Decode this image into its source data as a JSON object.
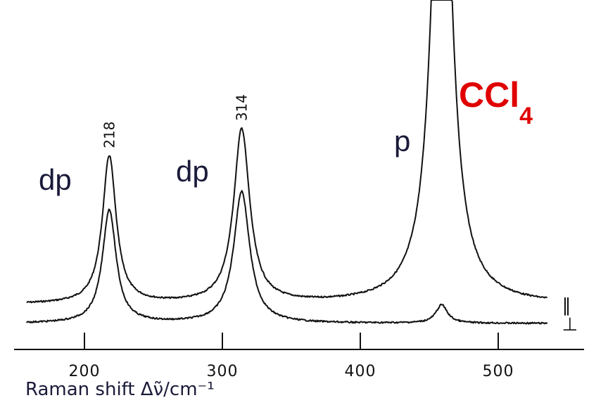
{
  "chart_data": {
    "type": "line",
    "xlabel": "Raman shift Δν̃/cm⁻¹",
    "xlim": [
      150,
      550
    ],
    "xticks": [
      200,
      300,
      400,
      500
    ],
    "molecule": {
      "base": "CCl",
      "subscript": "4"
    },
    "peak_labels": [
      {
        "x": 218,
        "text": "218"
      },
      {
        "x": 314,
        "text": "314"
      }
    ],
    "mode_labels": [
      {
        "x": 218,
        "text": "dp"
      },
      {
        "x": 314,
        "text": "dp"
      },
      {
        "x": 459,
        "text": "p"
      }
    ],
    "series": [
      {
        "name": "∥",
        "baseline": 0.04,
        "peaks": [
          {
            "x": 218,
            "height": 0.56,
            "width": 6
          },
          {
            "x": 314,
            "height": 0.66,
            "width": 7
          },
          {
            "x": 459,
            "height": 2.2,
            "width": 8
          }
        ]
      },
      {
        "name": "⊥",
        "baseline": 0.0,
        "peaks": [
          {
            "x": 218,
            "height": 0.43,
            "width": 6
          },
          {
            "x": 314,
            "height": 0.5,
            "width": 7
          },
          {
            "x": 459,
            "height": 0.07,
            "width": 5
          }
        ]
      }
    ]
  }
}
